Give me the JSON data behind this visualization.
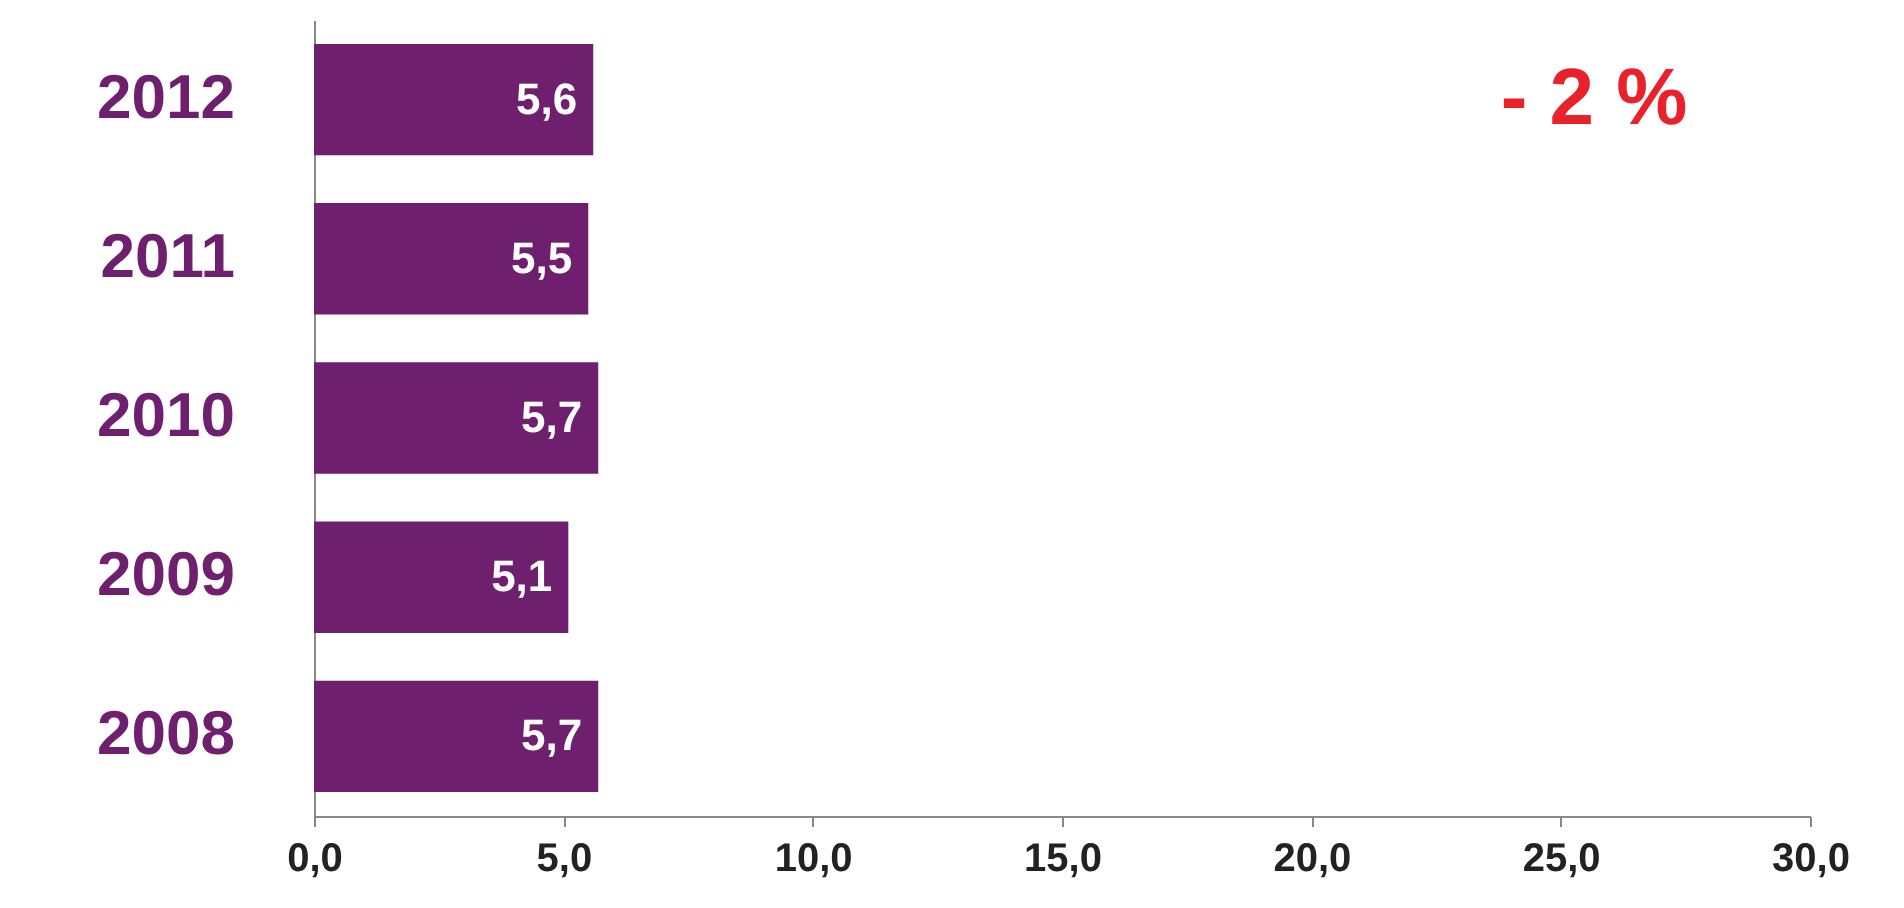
{
  "chart_data": {
    "type": "bar",
    "orientation": "horizontal",
    "categories": [
      "2012",
      "2011",
      "2010",
      "2009",
      "2008"
    ],
    "values": [
      5.6,
      5.5,
      5.7,
      5.1,
      5.7
    ],
    "value_labels": [
      "5,6",
      "5,5",
      "5,7",
      "5,1",
      "5,7"
    ],
    "color": "#6e1f6e",
    "xlim": [
      0,
      30
    ],
    "xticks": [
      {
        "value": 0,
        "label": "0,0"
      },
      {
        "value": 5,
        "label": "5,0"
      },
      {
        "value": 10,
        "label": "10,0"
      },
      {
        "value": 15,
        "label": "15,0"
      },
      {
        "value": 20,
        "label": "20,0"
      },
      {
        "value": 25,
        "label": "25,0"
      },
      {
        "value": 30,
        "label": "30,0"
      }
    ],
    "annotations": [
      "- 2 %"
    ]
  }
}
